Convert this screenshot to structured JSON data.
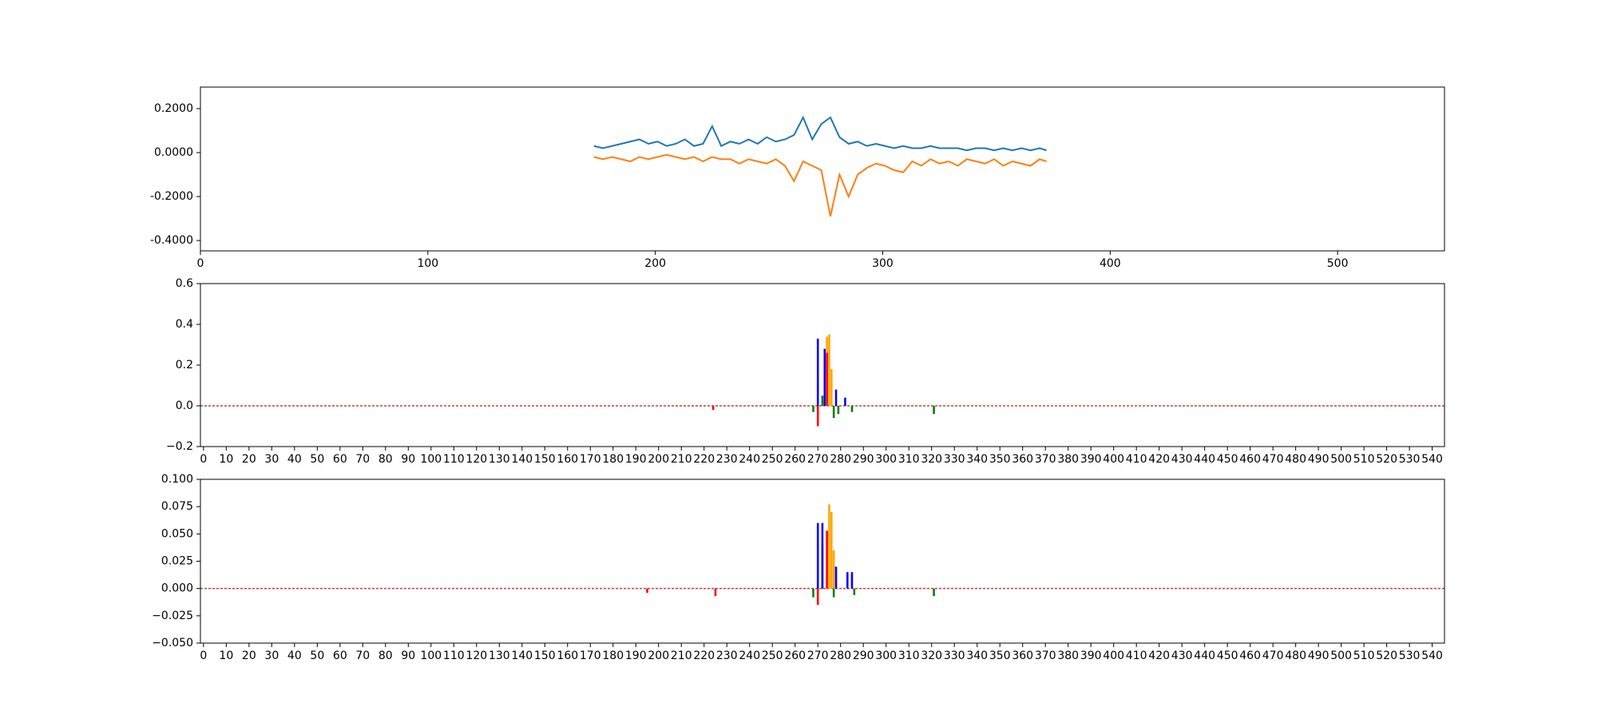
{
  "chart_data": [
    {
      "type": "line",
      "xlim": [
        0,
        547
      ],
      "xticks": [
        0,
        100,
        200,
        300,
        400,
        500
      ],
      "ylim": [
        -0.447,
        0.298
      ],
      "yticks": [
        {
          "value": -0.4,
          "label": "-0.4000"
        },
        {
          "value": -0.2,
          "label": "-0.2000"
        },
        {
          "value": 0,
          "label": "0.0000"
        },
        {
          "value": 0.2,
          "label": "0.2000"
        }
      ],
      "x": [
        173,
        177,
        181,
        185,
        189,
        193,
        197,
        201,
        205,
        209,
        213,
        217,
        221,
        225,
        229,
        233,
        237,
        241,
        245,
        249,
        253,
        257,
        261,
        265,
        269,
        273,
        277,
        281,
        285,
        289,
        293,
        297,
        301,
        305,
        309,
        313,
        317,
        321,
        325,
        329,
        333,
        337,
        341,
        345,
        349,
        353,
        357,
        361,
        365,
        369,
        372
      ],
      "series": [
        {
          "color": "#1f77b4",
          "values": [
            0.03,
            0.02,
            0.03,
            0.04,
            0.05,
            0.06,
            0.04,
            0.05,
            0.03,
            0.04,
            0.06,
            0.03,
            0.04,
            0.12,
            0.03,
            0.05,
            0.04,
            0.06,
            0.04,
            0.07,
            0.05,
            0.06,
            0.08,
            0.16,
            0.06,
            0.13,
            0.16,
            0.07,
            0.04,
            0.05,
            0.03,
            0.04,
            0.03,
            0.02,
            0.03,
            0.02,
            0.02,
            0.03,
            0.02,
            0.02,
            0.02,
            0.01,
            0.02,
            0.02,
            0.01,
            0.02,
            0.01,
            0.02,
            0.01,
            0.02,
            0.01
          ]
        },
        {
          "color": "#ff7f0e",
          "values": [
            -0.02,
            -0.03,
            -0.02,
            -0.03,
            -0.04,
            -0.02,
            -0.03,
            -0.02,
            -0.01,
            -0.02,
            -0.03,
            -0.02,
            -0.04,
            -0.02,
            -0.03,
            -0.03,
            -0.05,
            -0.03,
            -0.04,
            -0.05,
            -0.03,
            -0.06,
            -0.13,
            -0.04,
            -0.06,
            -0.08,
            -0.29,
            -0.1,
            -0.2,
            -0.1,
            -0.07,
            -0.05,
            -0.06,
            -0.08,
            -0.09,
            -0.04,
            -0.06,
            -0.03,
            -0.05,
            -0.04,
            -0.06,
            -0.03,
            -0.04,
            -0.05,
            -0.03,
            -0.06,
            -0.04,
            -0.05,
            -0.06,
            -0.03,
            -0.04
          ]
        }
      ]
    },
    {
      "type": "bar",
      "xlim": [
        -1.35,
        545.4
      ],
      "xticks": [
        0,
        10,
        20,
        30,
        40,
        50,
        60,
        70,
        80,
        90,
        100,
        110,
        120,
        130,
        140,
        150,
        160,
        170,
        180,
        190,
        200,
        210,
        220,
        230,
        240,
        250,
        260,
        270,
        280,
        290,
        300,
        310,
        320,
        330,
        340,
        350,
        360,
        370,
        380,
        390,
        400,
        410,
        420,
        430,
        440,
        450,
        460,
        470,
        480,
        490,
        500,
        510,
        520,
        530,
        540
      ],
      "ylim": [
        -0.2,
        0.6
      ],
      "yticks": [
        {
          "value": -0.2,
          "label": "−0.2"
        },
        {
          "value": 0,
          "label": "0.0"
        },
        {
          "value": 0.2,
          "label": "0.2"
        },
        {
          "value": 0.4,
          "label": "0.4"
        },
        {
          "value": 0.6,
          "label": "0.6"
        }
      ],
      "series": [
        {
          "color": "green",
          "x": [
            268,
            272,
            277,
            279,
            285,
            321
          ],
          "values": [
            -0.03,
            0.05,
            -0.06,
            -0.04,
            -0.03,
            -0.04
          ]
        },
        {
          "color": "blue",
          "x": [
            270,
            273,
            278,
            282
          ],
          "values": [
            0.33,
            0.28,
            0.08,
            0.04
          ]
        },
        {
          "color": "orange",
          "x": [
            274,
            275,
            276
          ],
          "values": [
            0.34,
            0.35,
            0.18
          ]
        },
        {
          "color": "red",
          "x": [
            224,
            270,
            274
          ],
          "values": [
            -0.02,
            -0.1,
            0.26
          ]
        }
      ]
    },
    {
      "type": "bar",
      "xlim": [
        -1.35,
        545.4
      ],
      "xticks": [
        0,
        10,
        20,
        30,
        40,
        50,
        60,
        70,
        80,
        90,
        100,
        110,
        120,
        130,
        140,
        150,
        160,
        170,
        180,
        190,
        200,
        210,
        220,
        230,
        240,
        250,
        260,
        270,
        280,
        290,
        300,
        310,
        320,
        330,
        340,
        350,
        360,
        370,
        380,
        390,
        400,
        410,
        420,
        430,
        440,
        450,
        460,
        470,
        480,
        490,
        500,
        510,
        520,
        530,
        540
      ],
      "ylim": [
        -0.05,
        0.1
      ],
      "yticks": [
        {
          "value": -0.05,
          "label": "−0.050"
        },
        {
          "value": -0.025,
          "label": "−0.025"
        },
        {
          "value": 0,
          "label": "0.000"
        },
        {
          "value": 0.025,
          "label": "0.025"
        },
        {
          "value": 0.05,
          "label": "0.050"
        },
        {
          "value": 0.075,
          "label": "0.075"
        },
        {
          "value": 0.1,
          "label": "0.100"
        }
      ],
      "series": [
        {
          "color": "green",
          "x": [
            268,
            272,
            277,
            286,
            321
          ],
          "values": [
            -0.008,
            0.04,
            -0.008,
            -0.006,
            -0.007
          ]
        },
        {
          "color": "blue",
          "x": [
            270,
            272,
            278,
            283,
            285
          ],
          "values": [
            0.06,
            0.06,
            0.02,
            0.015,
            0.015
          ]
        },
        {
          "color": "orange",
          "x": [
            275,
            276,
            277
          ],
          "values": [
            0.077,
            0.07,
            0.035
          ]
        },
        {
          "color": "red",
          "x": [
            195,
            225,
            270,
            274
          ],
          "values": [
            -0.004,
            -0.007,
            -0.015,
            0.053
          ]
        }
      ]
    }
  ]
}
